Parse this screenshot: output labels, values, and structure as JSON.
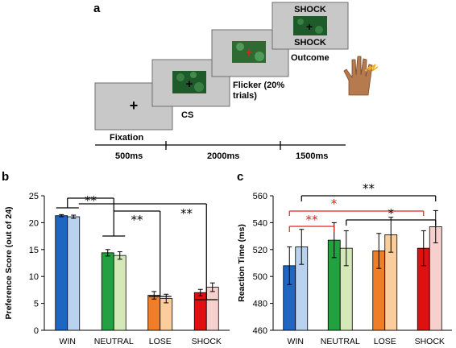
{
  "panel_a": {
    "letter": "a",
    "screens": {
      "fixation_label": "Fixation",
      "cs_label": "CS",
      "flicker_label_line1": "Flicker (20%",
      "flicker_label_line2": "trials)",
      "outcome_label": "Outcome",
      "shock_top": "SHOCK",
      "shock_bottom": "SHOCK"
    },
    "timeline": {
      "t1": "500ms",
      "t2": "2000ms",
      "t3": "1500ms"
    },
    "colors": {
      "screen": "#c8c8c8",
      "stim": "#1f5a2a"
    }
  },
  "chart_data": [
    {
      "panel": "b",
      "type": "bar",
      "title": "",
      "xlabel": "",
      "ylabel": "Preference Score (out of 24)",
      "ylim": [
        0,
        25
      ],
      "yticks": [
        0,
        5,
        10,
        15,
        20,
        25
      ],
      "categories": [
        "WIN",
        "NEUTRAL",
        "LOSE",
        "SHOCK"
      ],
      "series": [
        {
          "values": [
            21.3,
            14.4,
            6.5,
            7.0
          ],
          "errors": [
            0.2,
            0.6,
            0.7,
            0.6
          ],
          "colors": [
            "#1f66c2",
            "#23a040",
            "#f07d28",
            "#e01010"
          ]
        },
        {
          "values": [
            21.1,
            13.9,
            5.9,
            8.0
          ],
          "errors": [
            0.3,
            0.7,
            0.8,
            0.8
          ],
          "colors": [
            "#b8d2f0",
            "#d4e8b8",
            "#fbcd9c",
            "#f6d0cc"
          ]
        }
      ],
      "significance": [
        {
          "label": "**",
          "color": "#000000"
        },
        {
          "label": "**",
          "color": "#000000"
        },
        {
          "label": "**",
          "color": "#000000"
        }
      ]
    },
    {
      "panel": "c",
      "type": "bar",
      "title": "",
      "xlabel": "",
      "ylabel": "Reaction Time (ms)",
      "ylim": [
        460,
        560
      ],
      "yticks": [
        460,
        480,
        500,
        520,
        540,
        560
      ],
      "categories": [
        "WIN",
        "NEUTRAL",
        "LOSE",
        "SHOCK"
      ],
      "series": [
        {
          "values": [
            508,
            527,
            519,
            521
          ],
          "errors": [
            14,
            13,
            13,
            13
          ],
          "colors": [
            "#1f66c2",
            "#23a040",
            "#f07d28",
            "#e01010"
          ]
        },
        {
          "values": [
            522,
            521,
            531,
            537
          ],
          "errors": [
            13,
            13,
            13,
            12
          ],
          "colors": [
            "#b8d2f0",
            "#d4e8b8",
            "#fbcd9c",
            "#f6d0cc"
          ]
        }
      ],
      "significance": [
        {
          "label": "**",
          "color": "#000000"
        },
        {
          "label": "*",
          "color": "#e02020"
        },
        {
          "label": "**",
          "color": "#e02020"
        },
        {
          "label": "*",
          "color": "#000000"
        }
      ]
    }
  ]
}
